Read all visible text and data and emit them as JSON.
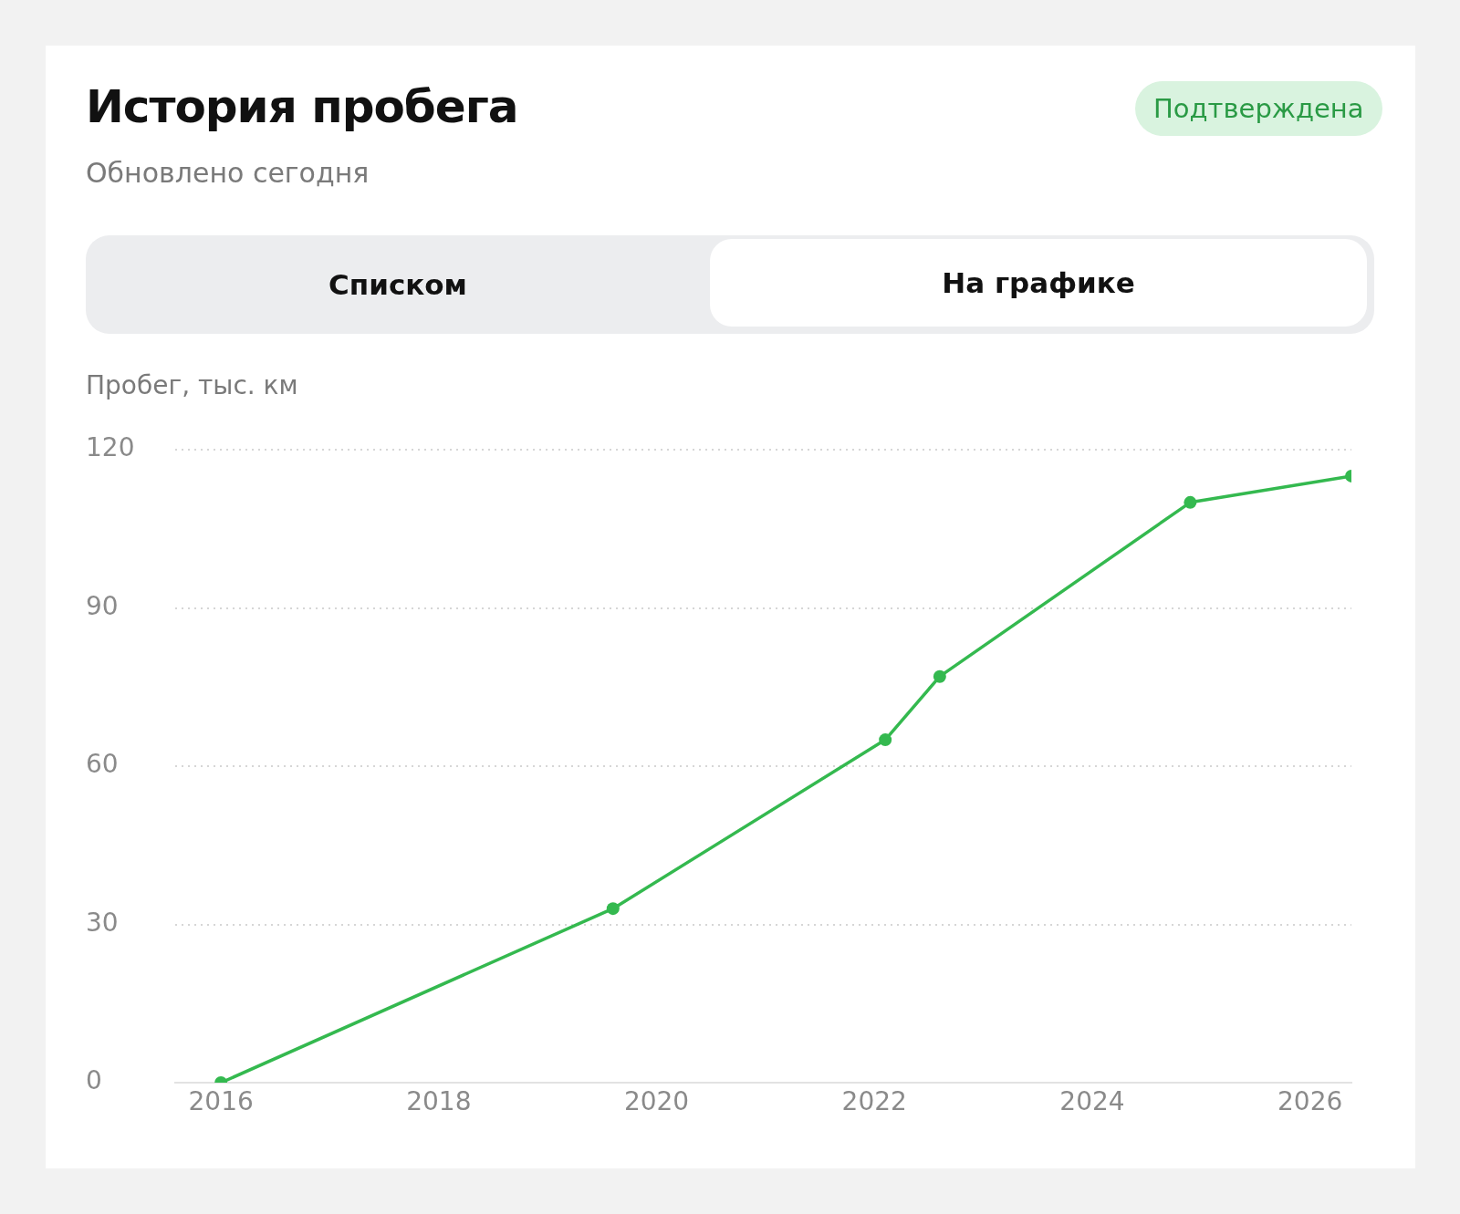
{
  "chart_data": {
    "type": "line",
    "title": "История пробега",
    "subtitle": "Обновлено сегодня",
    "ylabel": "Пробег, тыс. км",
    "annotations": [
      "Подтверждена",
      "Списком",
      "На графике"
    ],
    "x": [
      2016.0,
      2019.6,
      2022.1,
      2022.6,
      2024.9,
      2026.38
    ],
    "series": [
      {
        "color": "#34b94f",
        "values": [
          0,
          33,
          65,
          77,
          110,
          115
        ]
      }
    ],
    "xlim": [
      2015.58,
      2026.38
    ],
    "xticks": [
      2016,
      2018,
      2020,
      2022,
      2024,
      2026
    ],
    "ylim": [
      0,
      120
    ],
    "yticks": [
      0,
      30,
      60,
      90,
      120
    ],
    "grid": "y",
    "marker": "circle",
    "line_style": "solid"
  }
}
